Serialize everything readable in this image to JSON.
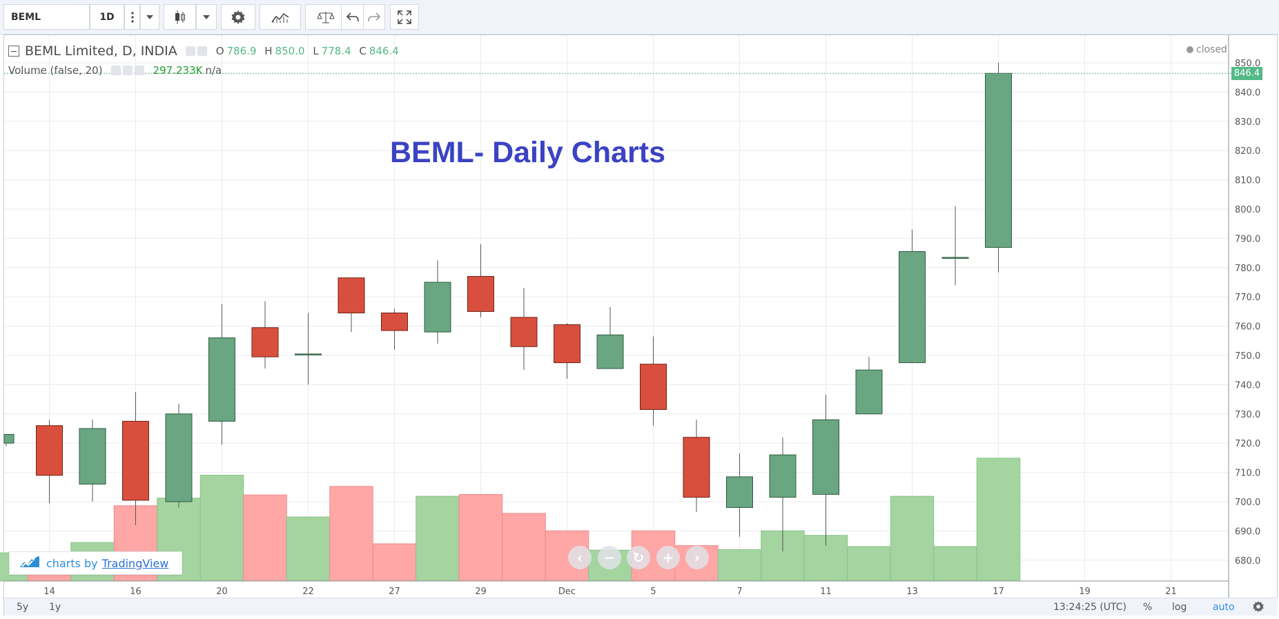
{
  "toolbar": {
    "symbol": "BEML",
    "interval": "1D",
    "icons": [
      "more-vert-icon",
      "chevron-down-icon",
      "candlestick-icon",
      "chevron-down-icon",
      "gear-icon",
      "indicators-icon",
      "compare-icon",
      "undo-icon",
      "redo-icon",
      "fullscreen-icon"
    ]
  },
  "legend": {
    "title": "BEML Limited, D, INDIA",
    "o_label": "O",
    "o": "786.9",
    "h_label": "H",
    "h": "850.0",
    "l_label": "L",
    "l": "778.4",
    "c_label": "C",
    "c": "846.4",
    "volume_label": "Volume (false, 20)",
    "volume_value": "297.233K",
    "volume_extra": "n/a"
  },
  "status": "closed",
  "overlay_title": "BEML- Daily Charts",
  "last_price_label": "846.4",
  "branding": {
    "prefix": "charts by",
    "name": "TradingView"
  },
  "bottom": {
    "ranges": [
      "5y",
      "1y"
    ],
    "clock": "13:24:25 (UTC)",
    "percent": "%",
    "log": "log",
    "auto": "auto"
  },
  "colors": {
    "up": "#53b987",
    "down": "#eb4d5c",
    "up_fill": "#6aa682",
    "down_fill": "#d94f3d",
    "up_volume": "#a4d4a0",
    "down_volume": "#ffa6a6",
    "title": "#3b43c3"
  },
  "chart_data": {
    "type": "candlestick",
    "title": "BEML- Daily Charts",
    "ylim": [
      674,
      852
    ],
    "y_ticks": [
      680,
      690,
      700,
      710,
      720,
      730,
      740,
      750,
      760,
      770,
      780,
      790,
      800,
      810,
      820,
      830,
      840,
      850
    ],
    "x_ticks": [
      {
        "label": "14",
        "index": 1
      },
      {
        "label": "16",
        "index": 3
      },
      {
        "label": "20",
        "index": 5
      },
      {
        "label": "22",
        "index": 7
      },
      {
        "label": "27",
        "index": 9
      },
      {
        "label": "29",
        "index": 11
      },
      {
        "label": "Dec",
        "index": 13
      },
      {
        "label": "5",
        "index": 15
      },
      {
        "label": "7",
        "index": 17
      },
      {
        "label": "11",
        "index": 19
      },
      {
        "label": "13",
        "index": 21
      },
      {
        "label": "17",
        "index": 23
      },
      {
        "label": "19",
        "index": 25
      },
      {
        "label": "21",
        "index": 27
      }
    ],
    "candles": [
      {
        "o": 720.0,
        "h": 723.0,
        "l": 719.0,
        "c": 723.0
      },
      {
        "o": 726.0,
        "h": 728.0,
        "l": 699.5,
        "c": 709.0
      },
      {
        "o": 706.0,
        "h": 728.0,
        "l": 700.0,
        "c": 725.0
      },
      {
        "o": 727.5,
        "h": 737.5,
        "l": 692.0,
        "c": 700.5
      },
      {
        "o": 700.0,
        "h": 733.5,
        "l": 698.0,
        "c": 730.0
      },
      {
        "o": 727.5,
        "h": 767.5,
        "l": 719.5,
        "c": 756.0
      },
      {
        "o": 759.5,
        "h": 768.5,
        "l": 745.5,
        "c": 749.5
      },
      {
        "o": 750.5,
        "h": 764.5,
        "l": 740.0,
        "c": 750.5
      },
      {
        "o": 776.5,
        "h": 776.5,
        "l": 758.0,
        "c": 764.5
      },
      {
        "o": 764.5,
        "h": 766.0,
        "l": 752.0,
        "c": 758.5
      },
      {
        "o": 758.0,
        "h": 782.5,
        "l": 754.0,
        "c": 775.0
      },
      {
        "o": 777.0,
        "h": 788.0,
        "l": 763.0,
        "c": 765.0
      },
      {
        "o": 763.0,
        "h": 773.0,
        "l": 745.0,
        "c": 753.0
      },
      {
        "o": 760.5,
        "h": 761.0,
        "l": 742.0,
        "c": 747.5
      },
      {
        "o": 745.5,
        "h": 766.5,
        "l": 745.5,
        "c": 757.0
      },
      {
        "o": 747.0,
        "h": 756.5,
        "l": 726.0,
        "c": 731.5
      },
      {
        "o": 722.0,
        "h": 728.0,
        "l": 696.5,
        "c": 701.5
      },
      {
        "o": 698.0,
        "h": 716.5,
        "l": 688.0,
        "c": 708.5
      },
      {
        "o": 701.5,
        "h": 722.0,
        "l": 683.0,
        "c": 716.0
      },
      {
        "o": 702.5,
        "h": 736.5,
        "l": 685.0,
        "c": 728.0
      },
      {
        "o": 730.0,
        "h": 749.5,
        "l": 730.0,
        "c": 745.0
      },
      {
        "o": 747.5,
        "h": 793.0,
        "l": 747.5,
        "c": 785.5
      },
      {
        "o": 783.5,
        "h": 801.0,
        "l": 774.0,
        "c": 783.5
      },
      {
        "o": 786.9,
        "h": 850.0,
        "l": 778.4,
        "c": 846.4
      }
    ],
    "volume": [
      {
        "v": 0.63,
        "dir": "up"
      },
      {
        "v": 0.47,
        "dir": "down"
      },
      {
        "v": 0.86,
        "dir": "up"
      },
      {
        "v": 1.68,
        "dir": "down"
      },
      {
        "v": 1.85,
        "dir": "up"
      },
      {
        "v": 2.36,
        "dir": "up"
      },
      {
        "v": 1.92,
        "dir": "down"
      },
      {
        "v": 1.43,
        "dir": "up"
      },
      {
        "v": 2.11,
        "dir": "down"
      },
      {
        "v": 0.83,
        "dir": "down"
      },
      {
        "v": 1.89,
        "dir": "up"
      },
      {
        "v": 1.93,
        "dir": "down"
      },
      {
        "v": 1.51,
        "dir": "down"
      },
      {
        "v": 1.12,
        "dir": "down"
      },
      {
        "v": 0.69,
        "dir": "up"
      },
      {
        "v": 1.12,
        "dir": "down"
      },
      {
        "v": 0.79,
        "dir": "down"
      },
      {
        "v": 0.7,
        "dir": "up"
      },
      {
        "v": 1.12,
        "dir": "up"
      },
      {
        "v": 1.02,
        "dir": "up"
      },
      {
        "v": 0.77,
        "dir": "up"
      },
      {
        "v": 1.89,
        "dir": "up"
      },
      {
        "v": 0.77,
        "dir": "up"
      },
      {
        "v": 2.74,
        "dir": "up"
      }
    ],
    "grid": true,
    "last_price": 846.4
  }
}
